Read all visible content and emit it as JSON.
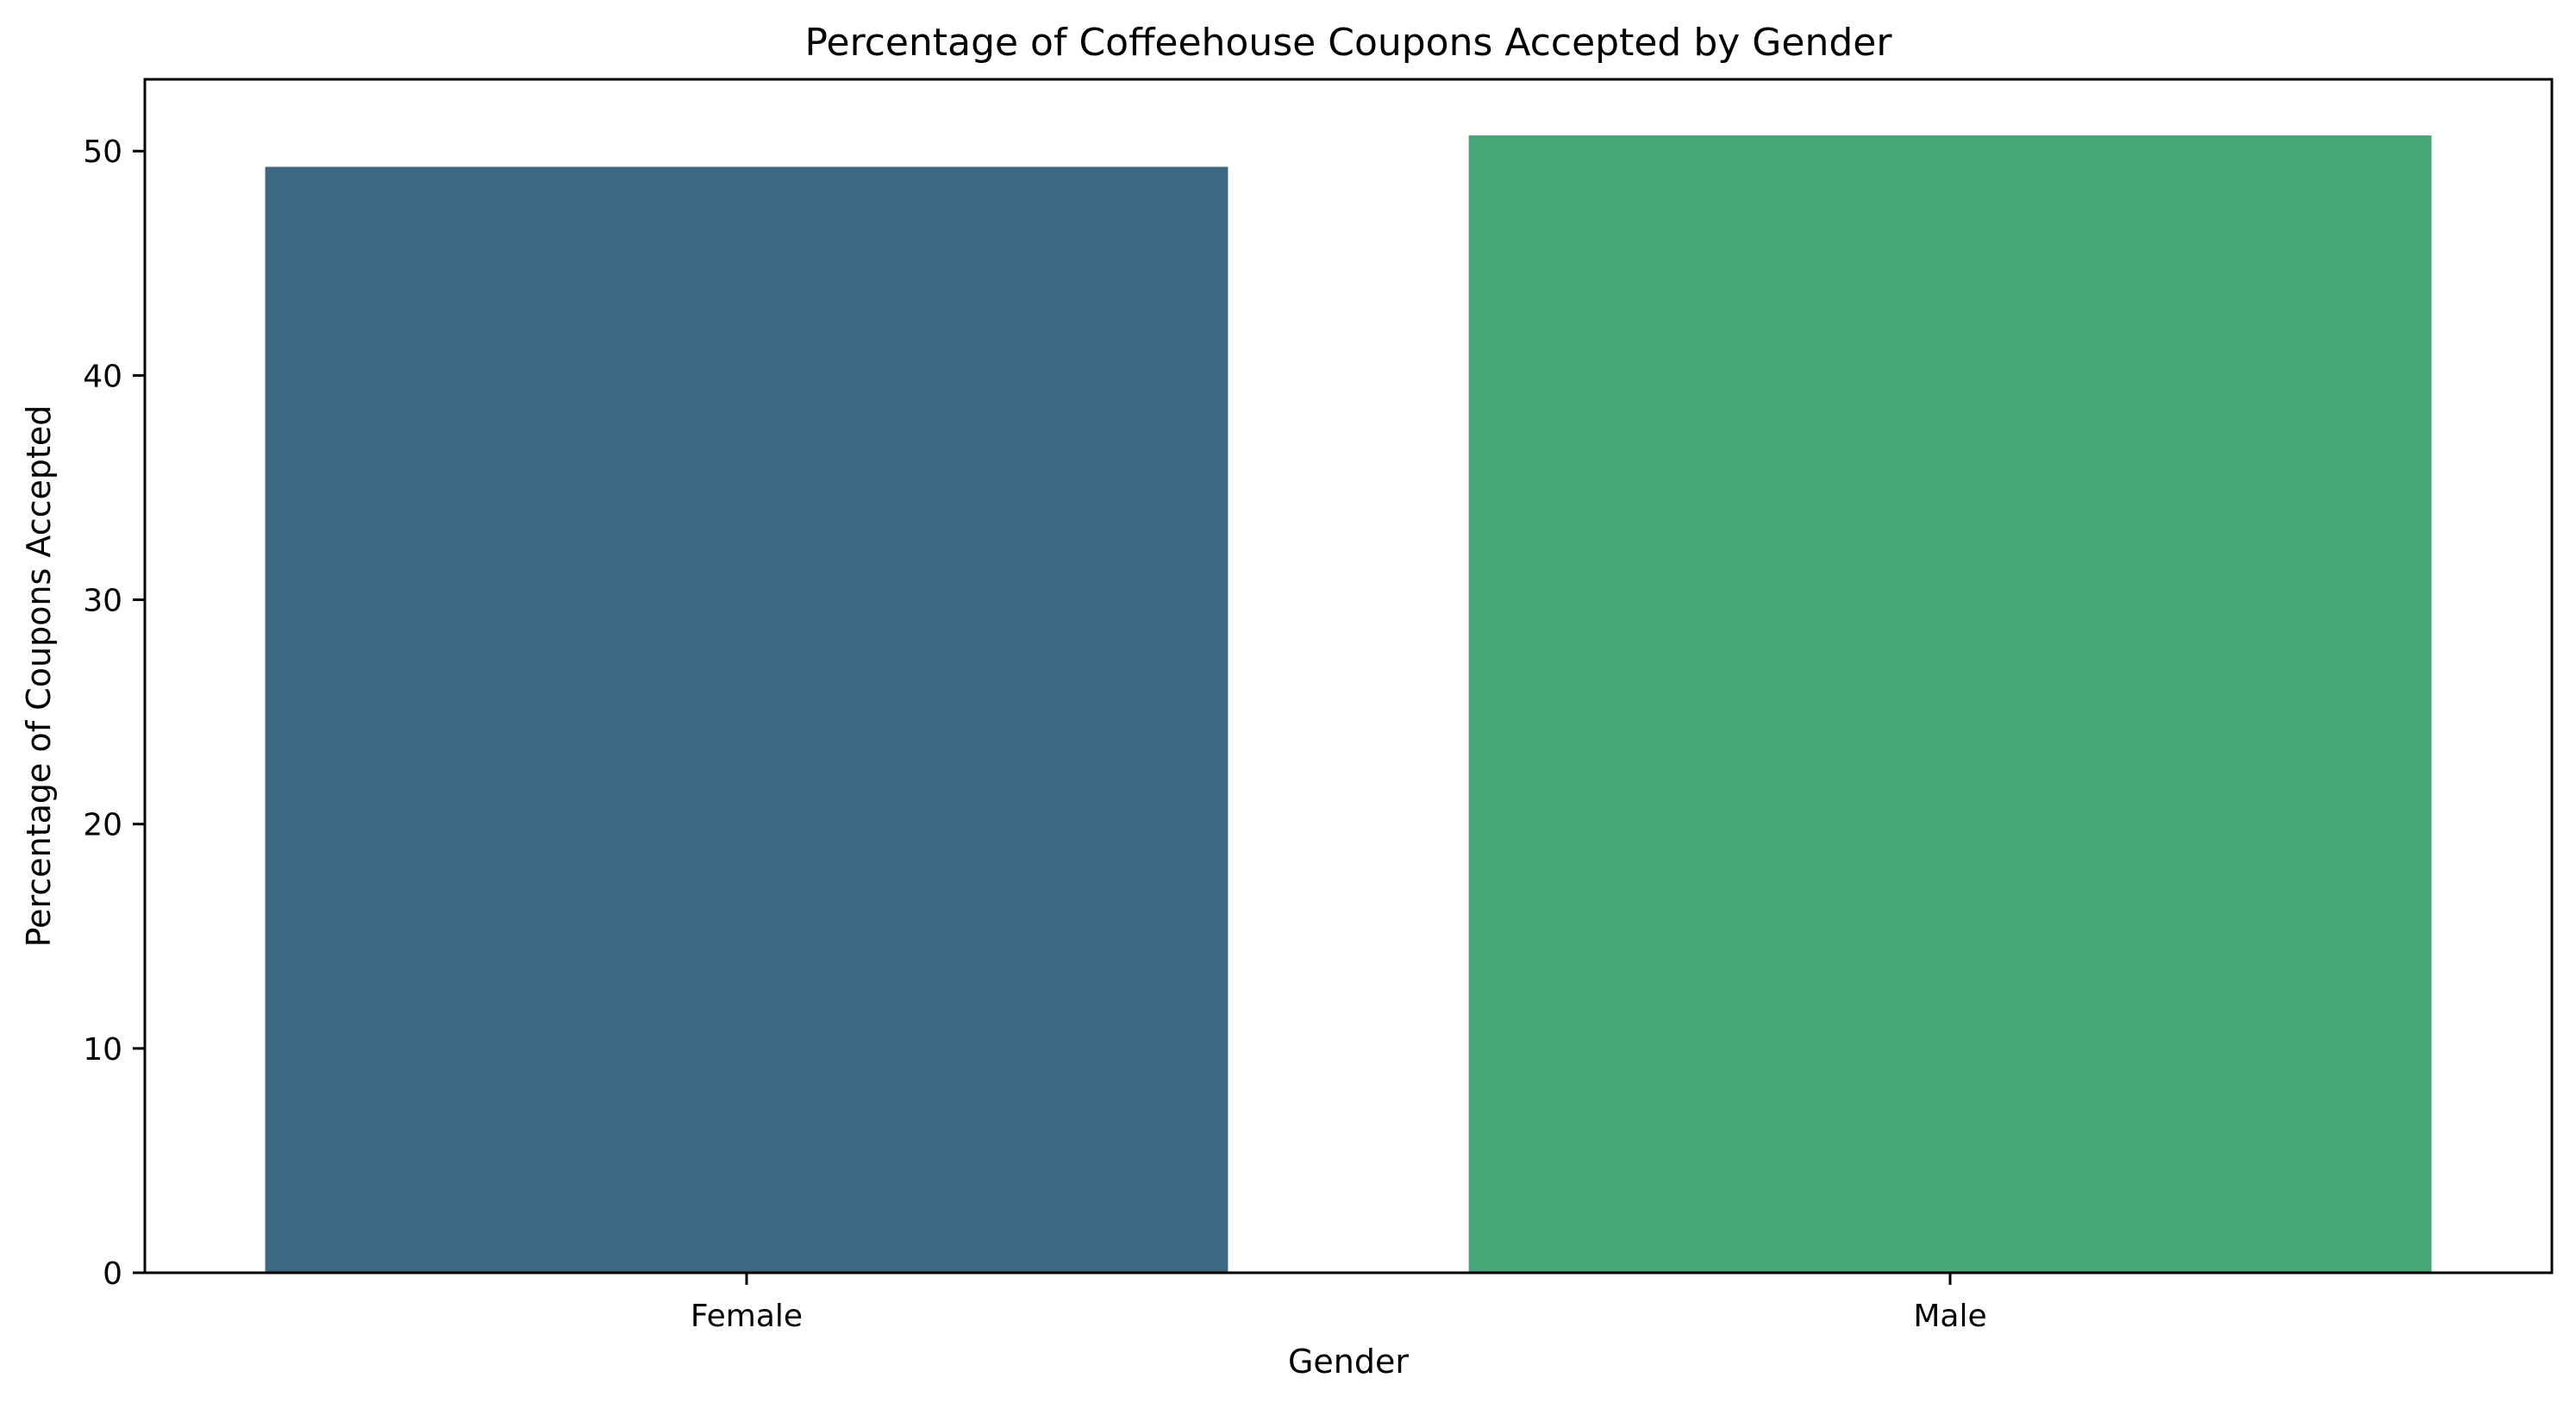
{
  "chart_data": {
    "type": "bar",
    "title": "Percentage of Coffeehouse Coupons Accepted by Gender",
    "xlabel": "Gender",
    "ylabel": "Percentage of Coupons Accepted",
    "categories": [
      "Female",
      "Male"
    ],
    "values": [
      49.3,
      50.7
    ],
    "colors": [
      "#3e6781",
      "#47a778"
    ],
    "ylim": [
      0,
      53.2
    ],
    "yticks": [
      0,
      10,
      20,
      30,
      40,
      50
    ],
    "grid": false,
    "legend": "none"
  }
}
